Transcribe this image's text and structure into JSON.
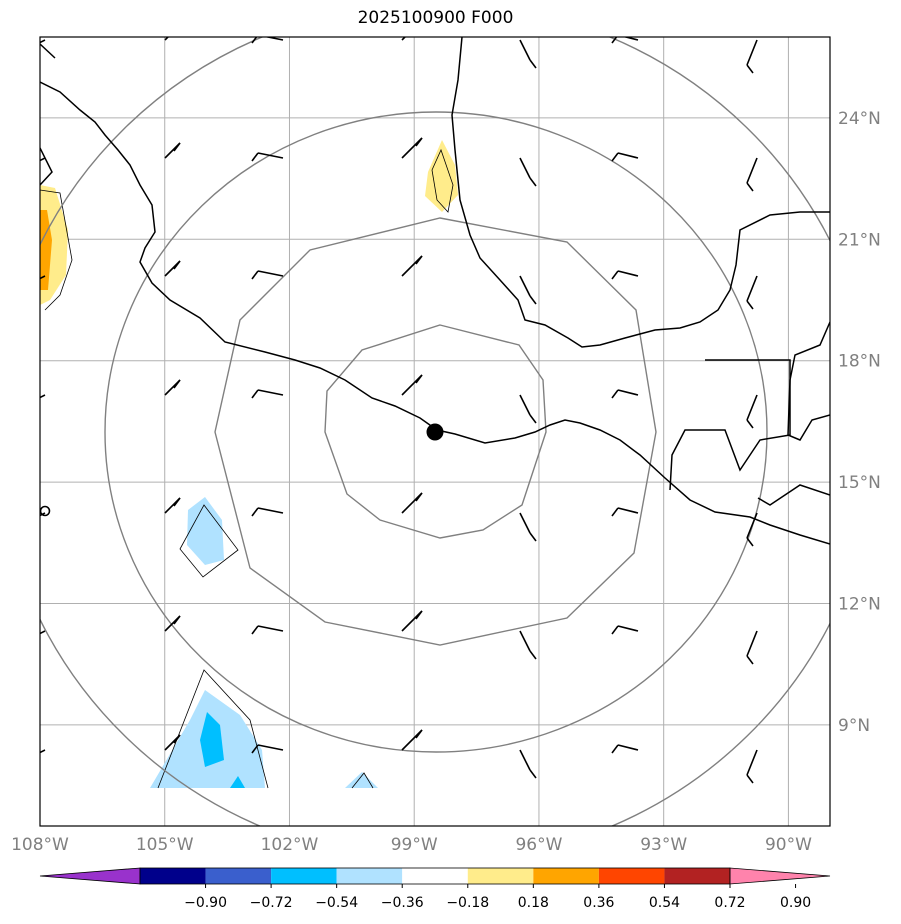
{
  "title": "2025100900 F000",
  "map": {
    "lon_range": [
      -108,
      -89
    ],
    "lat_range": [
      6.5,
      26
    ],
    "center": {
      "lon": -98.1,
      "lat": 16.0
    },
    "grid_lines": true,
    "lon_ticks": [
      {
        "value": -108,
        "label": "108°W"
      },
      {
        "value": -105,
        "label": "105°W"
      },
      {
        "value": -102,
        "label": "102°W"
      },
      {
        "value": -99,
        "label": "99°W"
      },
      {
        "value": -96,
        "label": "96°W"
      },
      {
        "value": -93,
        "label": "93°W"
      },
      {
        "value": -90,
        "label": "90°W"
      }
    ],
    "lat_ticks": [
      {
        "value": 24,
        "label": "24°N"
      },
      {
        "value": 21,
        "label": "21°N"
      },
      {
        "value": 18,
        "label": "18°N"
      },
      {
        "value": 15,
        "label": "15°N"
      },
      {
        "value": 12,
        "label": "12°N"
      },
      {
        "value": 9,
        "label": "9°N"
      }
    ],
    "range_rings": 4
  },
  "colorbar": {
    "extend": "both",
    "levels": [
      "−0.90",
      "−0.72",
      "−0.54",
      "−0.36",
      "−0.18",
      "0.18",
      "0.36",
      "0.54",
      "0.72",
      "0.90"
    ],
    "colors": [
      "#9932cc",
      "#00008b",
      "#3a5fcd",
      "#00bfff",
      "#b0e2ff",
      "#ffffff",
      "#ffec8b",
      "#ffa500",
      "#ff4500",
      "#b22222",
      "#ff83ac"
    ]
  }
}
